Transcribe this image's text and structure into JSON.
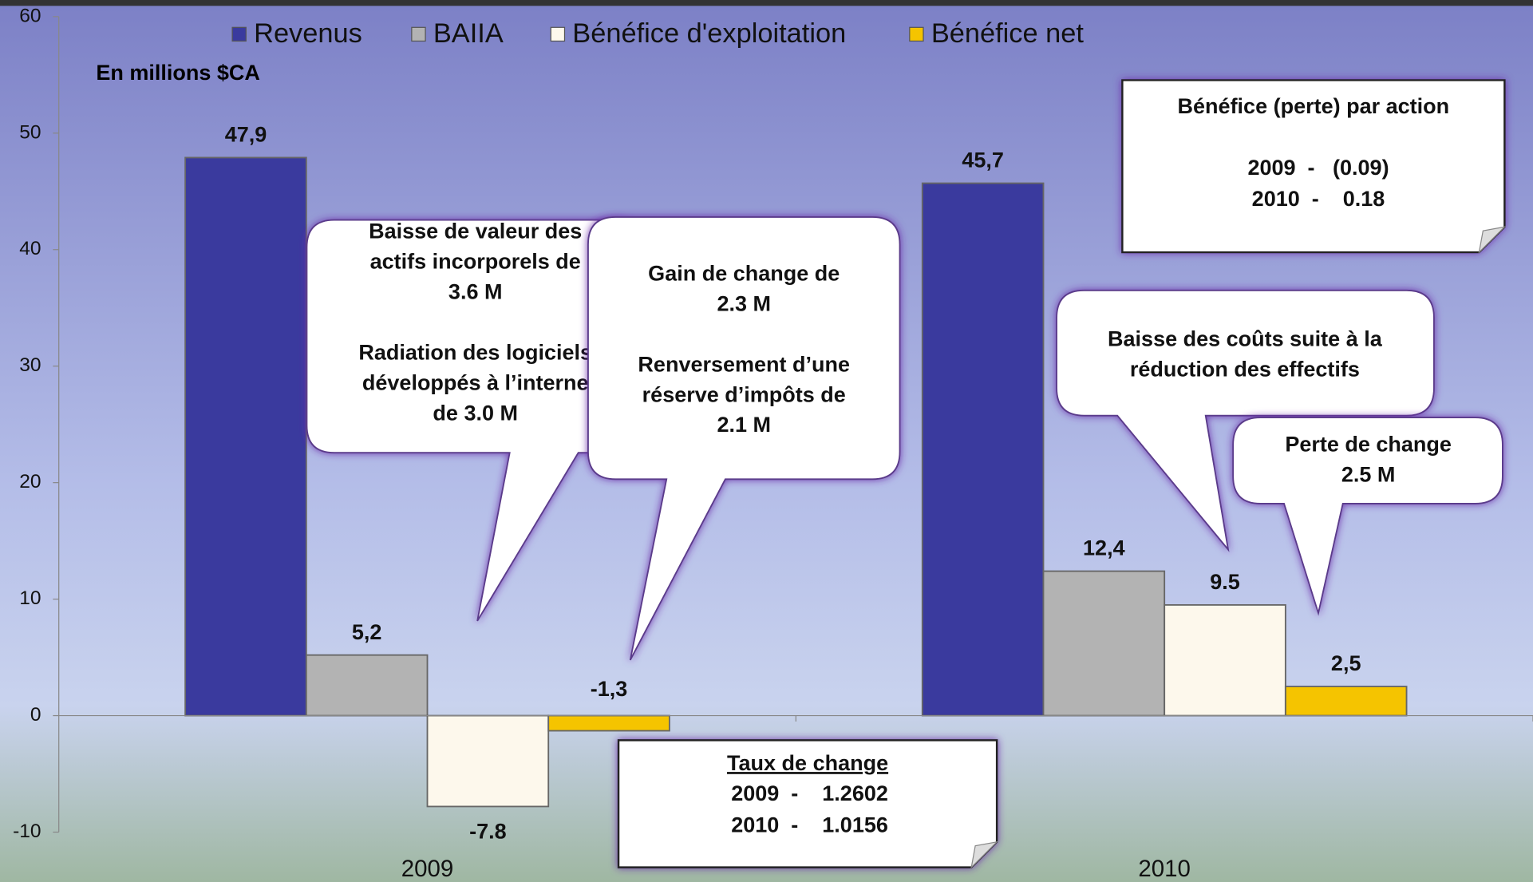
{
  "chart_data": {
    "type": "bar",
    "subtitle": "En millions $CA",
    "categories": [
      "2009",
      "2010"
    ],
    "series": [
      {
        "name": "Revenus",
        "color": "#3a3a9e",
        "values": [
          47.9,
          45.7
        ],
        "value_labels": [
          "47,9",
          "45,7"
        ]
      },
      {
        "name": "BAIIA",
        "color": "#b3b3b3",
        "values": [
          5.2,
          12.4
        ],
        "value_labels": [
          "5,2",
          "12,4"
        ]
      },
      {
        "name": "Bénéfice d'exploitation",
        "color": "#fdf8ec",
        "values": [
          -7.8,
          9.5
        ],
        "value_labels": [
          "-7.8",
          "9.5"
        ]
      },
      {
        "name": "Bénéfice net",
        "color": "#f5c400",
        "values": [
          -1.3,
          2.5
        ],
        "value_labels": [
          "-1,3",
          "2,5"
        ]
      }
    ],
    "ylim": [
      -10,
      60
    ],
    "yticks": [
      -10,
      0,
      10,
      20,
      30,
      40,
      50,
      60
    ],
    "legend": "top",
    "callouts": [
      {
        "paragraphs": [
          [
            "Baisse de valeur des",
            "actifs incorporels de",
            "3.6 M"
          ],
          [
            "Radiation des logiciels",
            "développés à l’interne",
            "de 3.0 M"
          ]
        ]
      },
      {
        "paragraphs": [
          [
            "Gain de change de",
            "2.3 M"
          ],
          [
            "Renversement d’une",
            "réserve d’impôts de",
            "2.1 M"
          ]
        ]
      },
      {
        "paragraphs": [
          [
            "Baisse des coûts suite à la",
            "réduction des effectifs"
          ]
        ]
      },
      {
        "paragraphs": [
          [
            "Perte de change",
            "2.5 M"
          ]
        ]
      }
    ],
    "eps_box": {
      "title": "Bénéfice (perte) par action",
      "lines": [
        "2009  -   (0.09)",
        "2010  -    0.18"
      ]
    },
    "fx_box": {
      "title": "Taux de change",
      "lines": [
        "2009  -    1.2602",
        "2010  -    1.0156"
      ]
    }
  }
}
